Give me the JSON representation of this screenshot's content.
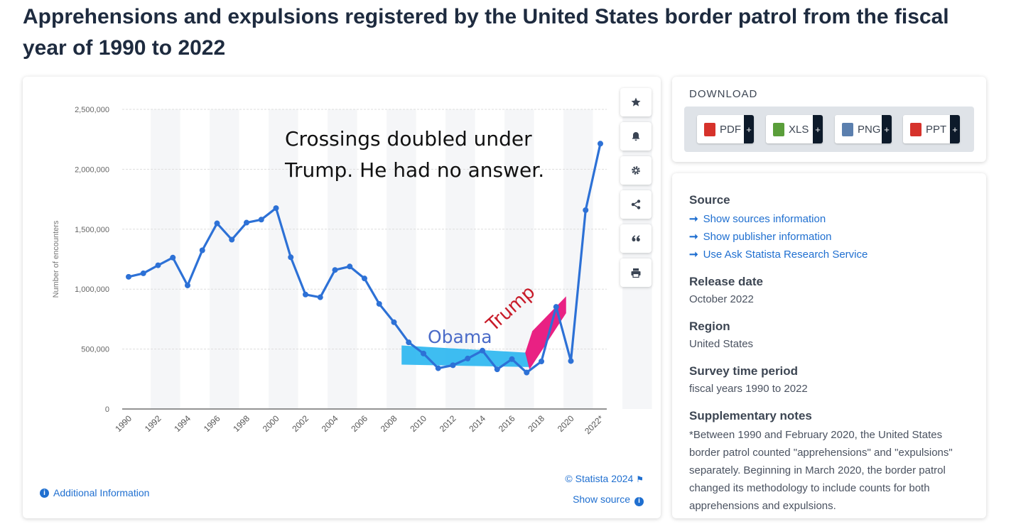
{
  "page": {
    "title": "Apprehensions and expulsions registered by the United States border patrol from the fiscal year of 1990 to 2022"
  },
  "chart_data": {
    "type": "line",
    "title": "Apprehensions and expulsions registered by the United States border patrol from the fiscal year of 1990 to 2022",
    "xlabel": "",
    "ylabel": "Number of encounters",
    "ylim": [
      0,
      2500000
    ],
    "yticks": [
      0,
      500000,
      1000000,
      1500000,
      2000000,
      2500000
    ],
    "ytick_labels": [
      "0",
      "500,000",
      "1,000,000",
      "1,500,000",
      "2,000,000",
      "2,500,000"
    ],
    "xtick_labels": [
      "1990",
      "1992",
      "1994",
      "1996",
      "1998",
      "2000",
      "2002",
      "2004",
      "2006",
      "2008",
      "2010",
      "2012",
      "2014",
      "2016",
      "2018",
      "2020",
      "2022*"
    ],
    "categories": [
      "1990",
      "1991",
      "1992",
      "1993",
      "1994",
      "1995",
      "1996",
      "1997",
      "1998",
      "1999",
      "2000",
      "2001",
      "2002",
      "2003",
      "2004",
      "2005",
      "2006",
      "2007",
      "2008",
      "2009",
      "2010",
      "2011",
      "2012",
      "2013",
      "2014",
      "2015",
      "2016",
      "2017",
      "2018",
      "2019",
      "2020",
      "2021",
      "2022*"
    ],
    "series": [
      {
        "name": "Apprehensions and expulsions",
        "color": "#2d71d6",
        "values": [
          1103000,
          1132000,
          1199000,
          1263000,
          1031000,
          1324000,
          1549000,
          1413000,
          1555000,
          1580000,
          1676000,
          1266000,
          955000,
          932000,
          1160000,
          1189000,
          1089000,
          877000,
          724000,
          556000,
          463000,
          340000,
          365000,
          421000,
          487000,
          331000,
          416000,
          304000,
          397000,
          852000,
          400000,
          1659000,
          2214000
        ]
      }
    ],
    "grid": true,
    "annotations": {
      "headline_line1": "Crossings doubled under",
      "headline_line2": "Trump. He had no answer.",
      "obama_label": "Obama",
      "trump_label": "Trump",
      "obama_color": "#29b6f0",
      "trump_color": "#e8157c"
    }
  },
  "toolbar": {
    "icons": [
      "star-icon",
      "bell-icon",
      "gear-icon",
      "share-icon",
      "quote-icon",
      "print-icon"
    ]
  },
  "footer": {
    "additional_info": "Additional Information",
    "copyright": "© Statista 2024",
    "show_source": "Show source"
  },
  "download": {
    "title": "DOWNLOAD",
    "buttons": [
      {
        "label": "PDF",
        "color": "#d6322b"
      },
      {
        "label": "XLS",
        "color": "#5a9e3a"
      },
      {
        "label": "PNG",
        "color": "#5b7fae"
      },
      {
        "label": "PPT",
        "color": "#d6322b"
      }
    ],
    "plus": "+"
  },
  "info": {
    "source_heading": "Source",
    "source_links": [
      "Show sources information",
      "Show publisher information",
      "Use Ask Statista Research Service"
    ],
    "release_heading": "Release date",
    "release_value": "October 2022",
    "region_heading": "Region",
    "region_value": "United States",
    "survey_heading": "Survey time period",
    "survey_value": "fiscal years 1990 to 2022",
    "notes_heading": "Supplementary notes",
    "notes_text": "*Between 1990 and February 2020, the United States border patrol counted \"apprehensions\" and \"expulsions\" separately. Beginning in March 2020, the border patrol changed its methodology to include counts for both apprehensions and expulsions."
  }
}
